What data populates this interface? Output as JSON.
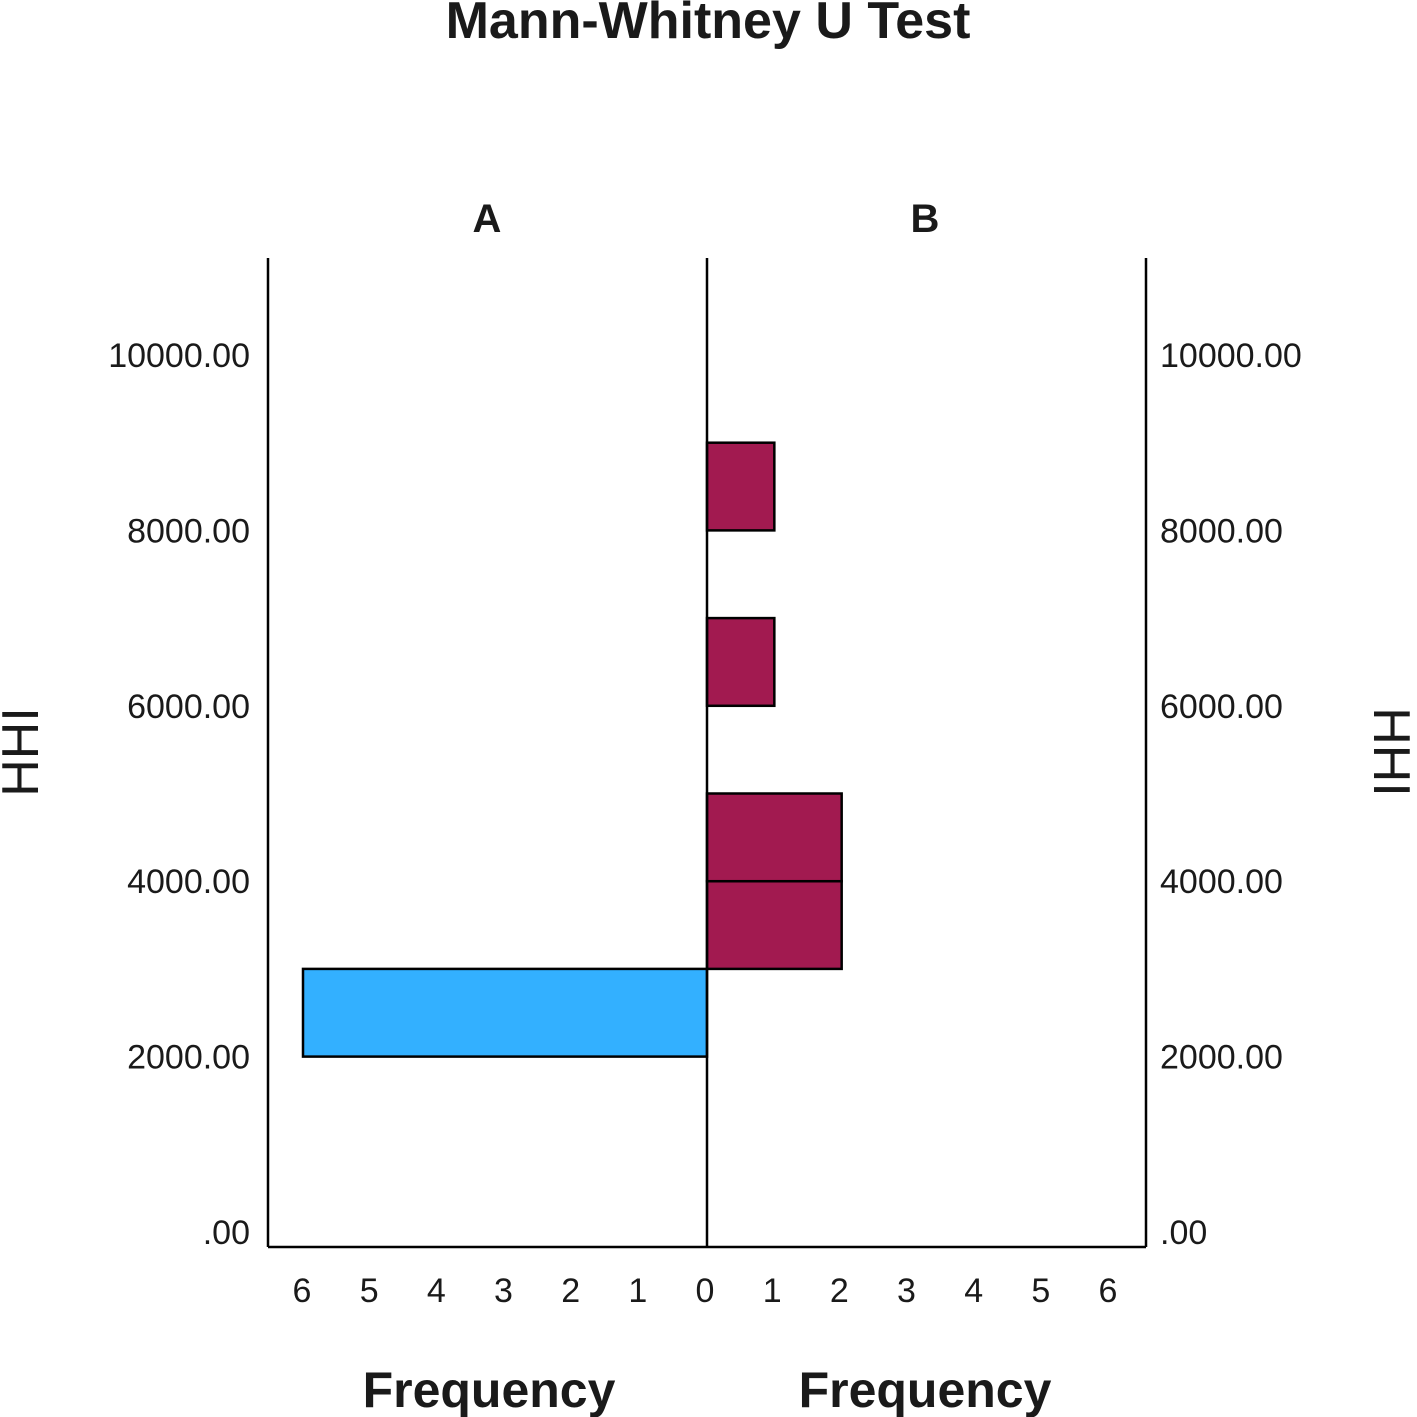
{
  "chart_data": {
    "type": "bar",
    "orientation": "horizontal",
    "title": "Mann-Whitney U Test",
    "ylabel": "HHI",
    "xlabel": "Frequency",
    "ylim": [
      0,
      11000
    ],
    "yticks": [
      ".00",
      "2000.00",
      "4000.00",
      "6000.00",
      "8000.00",
      "10000.00"
    ],
    "ytick_values": [
      0,
      2000,
      4000,
      6000,
      8000,
      10000
    ],
    "xlim": [
      0,
      6
    ],
    "xticks": [
      "6",
      "5",
      "4",
      "3",
      "2",
      "1",
      "0",
      "1",
      "2",
      "3",
      "4",
      "5",
      "6"
    ],
    "grid": false,
    "series": [
      {
        "name": "A",
        "side": "left",
        "color": "#33b0ff",
        "bins": [
          {
            "from": 2000,
            "to": 3000,
            "count": 6
          }
        ]
      },
      {
        "name": "B",
        "side": "right",
        "color": "#a21a50",
        "bins": [
          {
            "from": 3000,
            "to": 4000,
            "count": 2
          },
          {
            "from": 4000,
            "to": 5000,
            "count": 2
          },
          {
            "from": 6000,
            "to": 7000,
            "count": 1
          },
          {
            "from": 8000,
            "to": 9000,
            "count": 1
          }
        ]
      }
    ]
  }
}
